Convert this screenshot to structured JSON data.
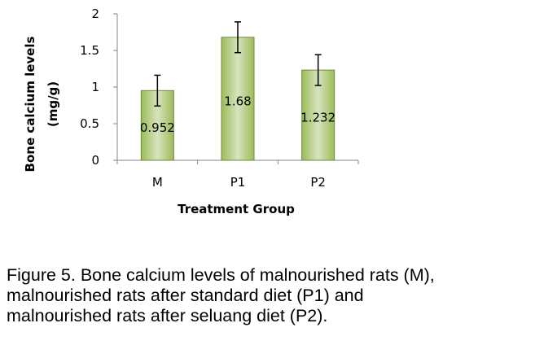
{
  "chart_data": {
    "type": "bar",
    "categories": [
      "M",
      "P1",
      "P2"
    ],
    "values": [
      0.952,
      1.68,
      1.232
    ],
    "value_labels": [
      "0.952",
      "1.68",
      "1.232"
    ],
    "error_bars": [
      0.21,
      0.21,
      0.21
    ],
    "xlabel": "Treatment Group",
    "ylabel_lines": [
      "Bone calcium levels",
      "(mg/g)"
    ],
    "ylim": [
      0,
      2
    ],
    "yticks": [
      0,
      0.5,
      1,
      1.5,
      2
    ],
    "ytick_labels": [
      "0",
      "0.5",
      "1",
      "1.5",
      "2"
    ],
    "grid": false,
    "bar_color": "#9bbb59",
    "bar_highlight": "#d7e4bd",
    "bar_edge": "#71893f"
  },
  "caption": {
    "lines": [
      "Figure 5.   Bone calcium levels of malnourished rats (M),",
      "malnourished rats after standard diet (P1) and",
      "malnourished rats after seluang diet (P2)."
    ]
  }
}
